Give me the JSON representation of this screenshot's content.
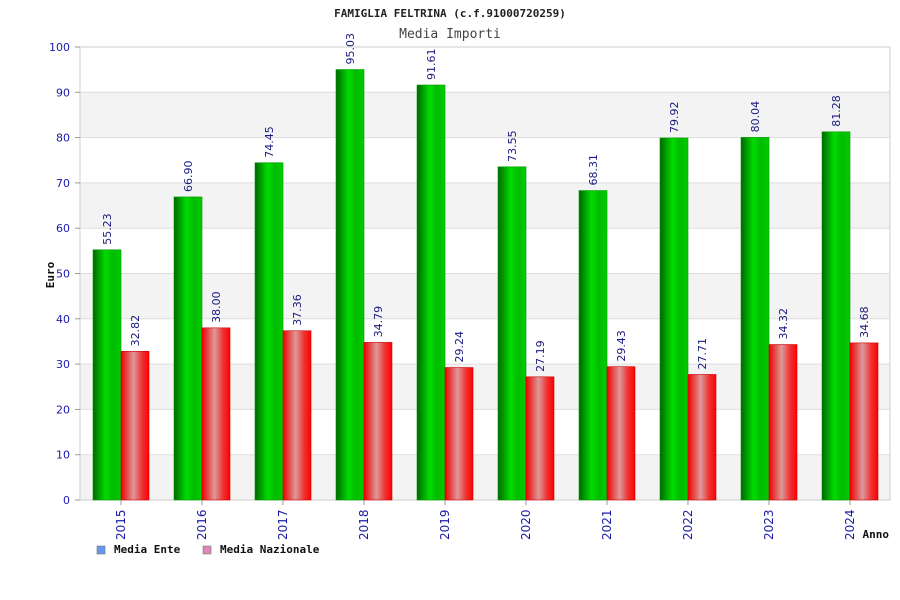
{
  "chart_data": {
    "type": "bar",
    "title": "FAMIGLIA FELTRINA (c.f.91000720259)",
    "subtitle": "Media Importi",
    "xlabel": "Anno",
    "ylabel": "Euro",
    "ylim": [
      0,
      100
    ],
    "yticks": [
      "0",
      "10",
      "20",
      "30",
      "40",
      "50",
      "60",
      "70",
      "80",
      "90",
      "100"
    ],
    "categories": [
      "2015",
      "2016",
      "2017",
      "2018",
      "2019",
      "2020",
      "2021",
      "2022",
      "2023",
      "2024"
    ],
    "series": [
      {
        "name": "Media Ente",
        "values": [
          55.23,
          66.9,
          74.45,
          95.03,
          91.61,
          73.55,
          68.31,
          79.92,
          80.04,
          81.28
        ],
        "labels": [
          "55.23",
          "66.90",
          "74.45",
          "95.03",
          "91.61",
          "73.55",
          "68.31",
          "79.92",
          "80.04",
          "81.28"
        ],
        "color": "#00cc00",
        "legend_color": "#6699ee"
      },
      {
        "name": "Media Nazionale",
        "values": [
          32.82,
          38.0,
          37.36,
          34.79,
          29.24,
          27.19,
          29.43,
          27.71,
          34.32,
          34.68
        ],
        "labels": [
          "32.82",
          "38.00",
          "37.36",
          "34.79",
          "29.24",
          "27.19",
          "29.43",
          "27.71",
          "34.32",
          "34.68"
        ],
        "color": "#ee0000",
        "legend_color": "#dd88bb"
      }
    ],
    "grid": true,
    "legend_position": "bottom-left"
  }
}
